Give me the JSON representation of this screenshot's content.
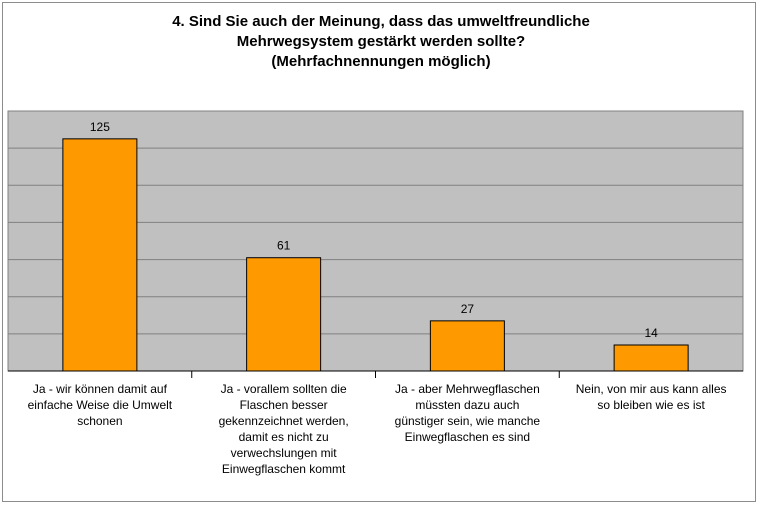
{
  "chart_data": {
    "type": "bar",
    "title_lines": [
      "4. Sind Sie auch der Meinung, dass das umweltfreundliche",
      "Mehrwegsystem gestärkt werden sollte?",
      "(Mehrfachnennungen möglich)"
    ],
    "categories": [
      [
        "Ja - wir können damit auf",
        "einfache Weise die Umwelt",
        "schonen"
      ],
      [
        "Ja - vorallem sollten die",
        "Flaschen besser",
        "gekennzeichnet werden,",
        "damit es nicht zu",
        "verwechslungen mit",
        "Einwegflaschen kommt"
      ],
      [
        "Ja - aber Mehrwegflaschen",
        "müssten dazu auch",
        "günstiger sein, wie manche",
        "Einwegflaschen es sind"
      ],
      [
        "Nein, von mir aus kann alles",
        "so bleiben wie es ist"
      ]
    ],
    "values": [
      125,
      61,
      27,
      14
    ],
    "ylim": [
      0,
      140
    ],
    "gridlines": true,
    "colors": {
      "bar": "#FF9900",
      "bar_border": "#000000",
      "plot_background": "#C0C0C0",
      "gridline": "#808080"
    }
  }
}
